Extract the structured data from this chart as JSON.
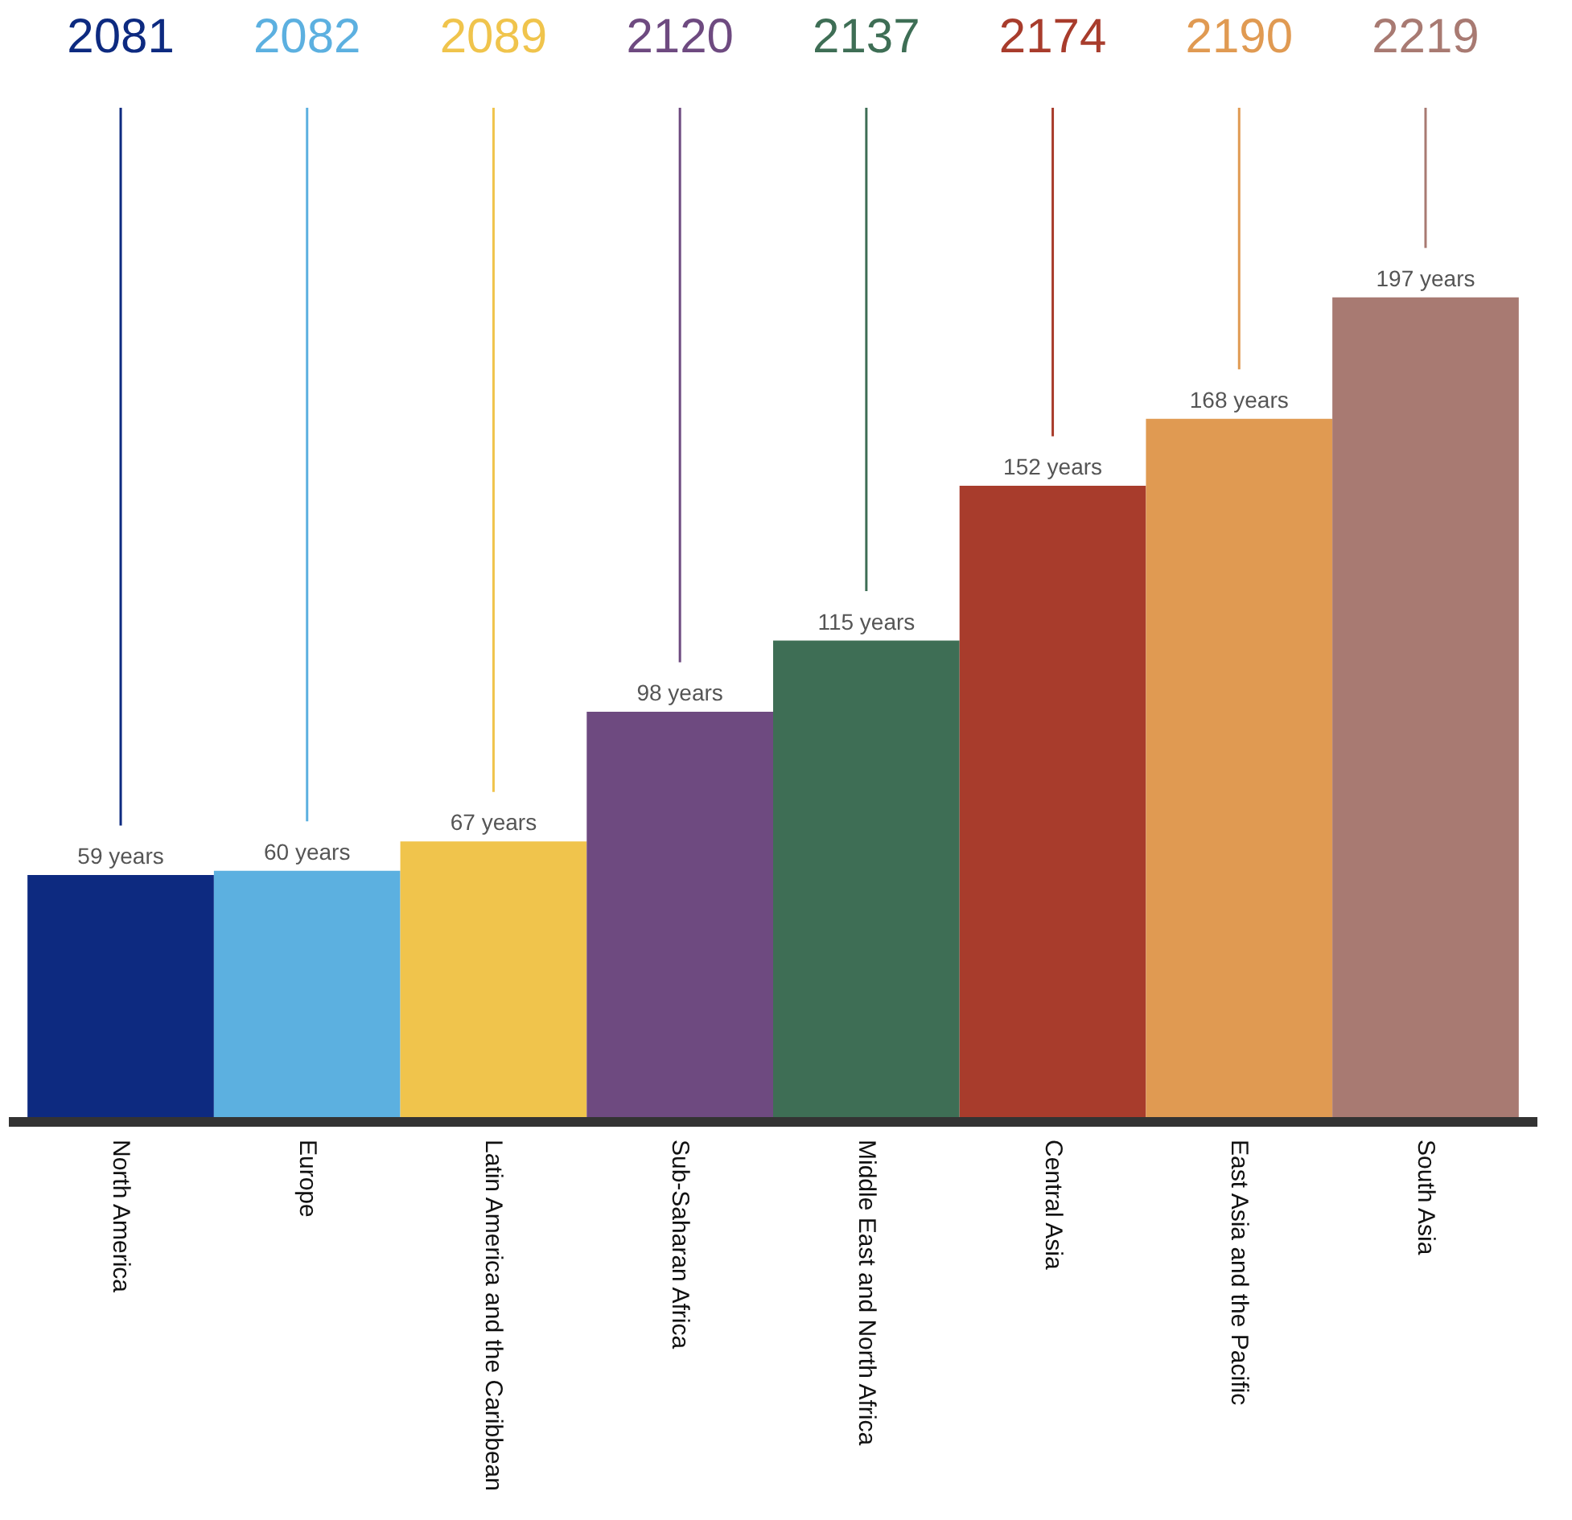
{
  "chart_data": {
    "type": "bar",
    "categories": [
      "North America",
      "Europe",
      "Latin America and the Caribbean",
      "Sub-Saharan Africa",
      "Middle East and North Africa",
      "Central Asia",
      "East Asia and the Pacific",
      "South Asia"
    ],
    "values": [
      59,
      60,
      67,
      98,
      115,
      152,
      168,
      197
    ],
    "colors": [
      "#0d2a80",
      "#5cb0e0",
      "#f0c44c",
      "#6e4a80",
      "#3e6e55",
      "#a83c2c",
      "#e09a52",
      "#a87a72"
    ],
    "value_labels": [
      "59 years",
      "60 years",
      "67 years",
      "98 years",
      "115 years",
      "152 years",
      "168 years",
      "197 years"
    ],
    "annotations": [
      {
        "text": "2081",
        "x": "North America"
      },
      {
        "text": "2082",
        "x": "Europe"
      },
      {
        "text": "2089",
        "x": "Latin America and the Caribbean"
      },
      {
        "text": "2120",
        "x": "Sub-Saharan Africa"
      },
      {
        "text": "2137",
        "x": "Middle East and North Africa"
      },
      {
        "text": "2174",
        "x": "Central Asia"
      },
      {
        "text": "2190",
        "x": "East Asia and the Pacific"
      },
      {
        "text": "2219",
        "x": "South Asia"
      }
    ]
  }
}
